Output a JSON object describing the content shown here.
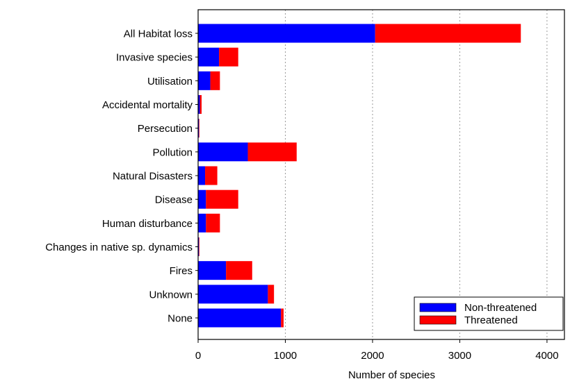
{
  "chart_data": {
    "type": "bar",
    "orientation": "horizontal",
    "stacked": true,
    "title": "",
    "xlabel": "Number of species",
    "ylabel": "",
    "xlim": [
      0,
      4200
    ],
    "xticks": [
      0,
      1000,
      2000,
      3000,
      4000
    ],
    "xtick_labels": [
      "0",
      "1000",
      "2000",
      "3000",
      "4000"
    ],
    "grid": "vertical-dotted",
    "legend_position": "bottom-right",
    "categories": [
      "All Habitat loss",
      "Invasive species",
      "Utilisation",
      "Accidental mortality",
      "Persecution",
      "Pollution",
      "Natural Disasters",
      "Disease",
      "Human disturbance",
      "Changes in native sp. dynamics",
      "Fires",
      "Unknown",
      "None"
    ],
    "series": [
      {
        "name": "Non-threatened",
        "color": "#0000ff",
        "values": [
          2030,
          240,
          140,
          20,
          10,
          570,
          80,
          90,
          90,
          10,
          320,
          800,
          950
        ]
      },
      {
        "name": "Threatened",
        "color": "#ff0000",
        "values": [
          1670,
          220,
          110,
          20,
          5,
          560,
          140,
          370,
          160,
          5,
          300,
          70,
          30
        ]
      }
    ]
  }
}
